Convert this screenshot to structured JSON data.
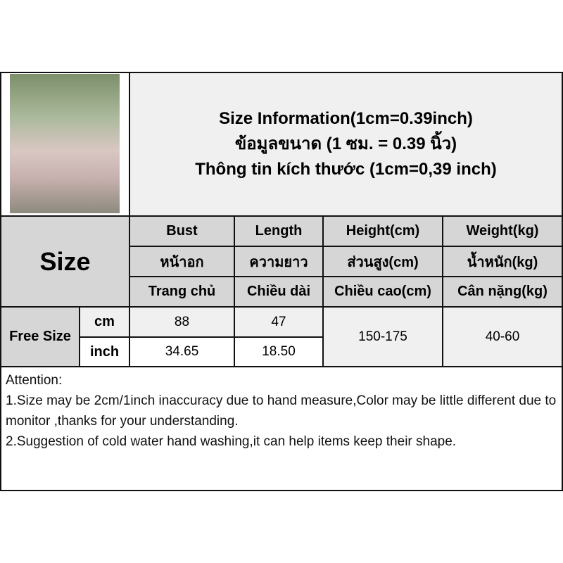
{
  "title": {
    "line1": "Size Information(1cm=0.39inch)",
    "line2": "ข้อมูลขนาด (1 ซม. = 0.39 นิ้ว)",
    "line3": "Thông tin kích thước (1cm=0,39 inch)"
  },
  "table": {
    "size_label": "Size",
    "headers": [
      {
        "en": "Bust",
        "th": "หน้าอก",
        "vi": "Trang chủ"
      },
      {
        "en": "Length",
        "th": "ความยาว",
        "vi": "Chiều dài"
      },
      {
        "en": "Height(cm)",
        "th": "ส่วนสูง(cm)",
        "vi": "Chiều cao(cm)"
      },
      {
        "en": "Weight(kg)",
        "th": "น้ำหนัก(kg)",
        "vi": "Cân nặng(kg)"
      }
    ],
    "row_label": "Free Size",
    "units": [
      "cm",
      "inch"
    ],
    "cm": {
      "bust": "88",
      "length": "47"
    },
    "inch": {
      "bust": "34.65",
      "length": "18.50"
    },
    "height": "150-175",
    "weight": "40-60"
  },
  "attention": {
    "heading": "Attention:",
    "line1": "1.Size may be 2cm/1inch inaccuracy due to hand measure,Color may be little different due to monitor ,thanks for your understanding.",
    "line2": "2.Suggestion of cold water hand washing,it can help items keep their shape."
  }
}
